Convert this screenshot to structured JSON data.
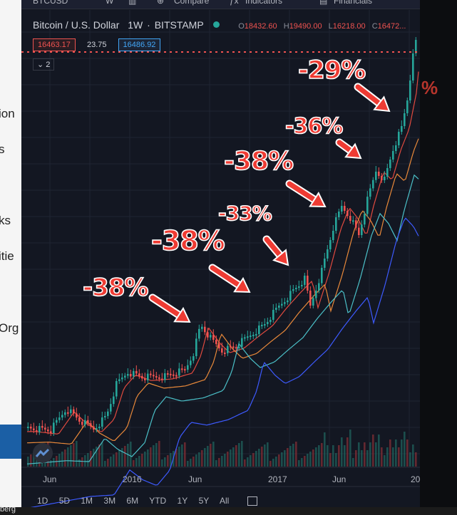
{
  "toolbar": {
    "symbol": "BTCUSD",
    "interval": "W",
    "compare_label": "Compare",
    "indicators_label": "Indicators",
    "financials_label": "Financials"
  },
  "legend": {
    "title": "Bitcoin / U.S. Dollar",
    "interval": "1W",
    "exchange": "BITSTAMP",
    "open_label": "O",
    "open": "18432.60",
    "high_label": "H",
    "high": "19490.00",
    "low_label": "L",
    "low": "16218.00",
    "close_label": "C",
    "close": "16472..."
  },
  "badges": {
    "bid": "16463.17",
    "spread": "23.75",
    "ask": "16486.92",
    "collapse": "2"
  },
  "annotations": [
    "-38%",
    "-38%",
    "-33%",
    "-38%",
    "-36%",
    "-29%"
  ],
  "x_axis": {
    "labels": [
      "Jun",
      "2016",
      "Jun",
      "2017",
      "Jun",
      "20"
    ]
  },
  "range_buttons": [
    "1D",
    "5D",
    "1M",
    "3M",
    "6M",
    "YTD",
    "1Y",
    "5Y",
    "All"
  ],
  "background_fragments": {
    "left": [
      "ion",
      "s",
      "ks",
      "itie",
      "Org"
    ],
    "right_pct": "%",
    "bottom": "berg"
  },
  "colors": {
    "up": "#26a69a",
    "down": "#ef5350",
    "annotation": "#ef3b33",
    "ma_fast": "#e04a3f",
    "ma_mid": "#e9893a",
    "ma_slow": "#4bc0c8",
    "ma_long": "#3d5afe"
  },
  "icons": [
    "candles-icon",
    "compare-icon",
    "indicators-icon",
    "financials-icon",
    "status-dot-icon",
    "tradingview-logo-icon",
    "calendar-icon"
  ]
}
